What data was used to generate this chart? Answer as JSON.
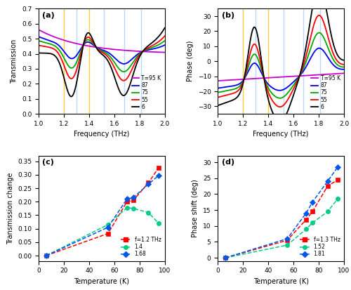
{
  "panel_a": {
    "title": "(a)",
    "xlabel": "Frequency (THz)",
    "ylabel": "Transmission",
    "xlim": [
      1.0,
      2.0
    ],
    "ylim": [
      0.0,
      0.7
    ],
    "yticks": [
      0.0,
      0.1,
      0.2,
      0.3,
      0.4,
      0.5,
      0.6,
      0.7
    ],
    "vlines_orange": [
      1.2,
      1.4
    ],
    "vlines_blue": [
      1.3,
      1.52,
      1.68,
      1.81
    ],
    "temperatures": [
      "T=95 K",
      "87",
      "75",
      "55",
      "6"
    ],
    "colors": [
      "#cc00cc",
      "#0000ff",
      "#00aa00",
      "#ff0000",
      "#000000"
    ]
  },
  "panel_b": {
    "title": "(b)",
    "xlabel": "Frequency (THz)",
    "ylabel": "Phase (deg)",
    "xlim": [
      1.0,
      2.0
    ],
    "ylim": [
      -35,
      35
    ],
    "yticks": [
      -30,
      -20,
      -10,
      0,
      10,
      20,
      30
    ],
    "vlines_orange": [
      1.2,
      1.4
    ],
    "vlines_blue": [
      1.3,
      1.52,
      1.68,
      1.81
    ],
    "temperatures": [
      "T=95 K",
      "87",
      "75",
      "55",
      "6"
    ],
    "colors": [
      "#cc00cc",
      "#0000ff",
      "#00aa00",
      "#ff0000",
      "#000000"
    ]
  },
  "panel_c": {
    "title": "(c)",
    "xlabel": "Temperature (K)",
    "ylabel": "Transmission change",
    "xlim": [
      0,
      100
    ],
    "ylim": [
      -0.02,
      0.37
    ],
    "yticks": [
      0.0,
      0.05,
      0.1,
      0.15,
      0.2,
      0.25,
      0.3,
      0.35
    ],
    "series": [
      {
        "label": "f=1.2 THz",
        "color": "#ff0000",
        "marker": "s",
        "x": [
          6,
          55,
          70,
          75,
          87,
          95
        ],
        "y": [
          0.0,
          0.082,
          0.2,
          0.205,
          0.27,
          0.325
        ]
      },
      {
        "label": "1.4",
        "color": "#00cc88",
        "marker": "o",
        "x": [
          6,
          55,
          70,
          75,
          87,
          95
        ],
        "y": [
          0.0,
          0.115,
          0.178,
          0.175,
          0.16,
          0.12
        ]
      },
      {
        "label": "1.68",
        "color": "#0055ee",
        "marker": "D",
        "x": [
          6,
          55,
          70,
          75,
          87,
          95
        ],
        "y": [
          0.0,
          0.105,
          0.21,
          0.215,
          0.265,
          0.297
        ]
      }
    ]
  },
  "panel_d": {
    "title": "(d)",
    "xlabel": "Temperature (K)",
    "ylabel": "Phase shift (deg)",
    "xlim": [
      0,
      100
    ],
    "ylim": [
      -1,
      32
    ],
    "yticks": [
      0,
      5,
      10,
      15,
      20,
      25,
      30
    ],
    "series": [
      {
        "label": "f=1.3 THz",
        "color": "#ff0000",
        "marker": "s",
        "x": [
          6,
          55,
          70,
          75,
          87,
          95
        ],
        "y": [
          0.0,
          5.5,
          12.0,
          14.5,
          22.5,
          24.5
        ]
      },
      {
        "label": "1.52",
        "color": "#00cc88",
        "marker": "o",
        "x": [
          6,
          55,
          70,
          75,
          87,
          95
        ],
        "y": [
          0.0,
          4.0,
          9.0,
          11.0,
          14.5,
          18.5
        ]
      },
      {
        "label": "1.81",
        "color": "#0055ee",
        "marker": "D",
        "x": [
          6,
          55,
          70,
          75,
          87,
          95
        ],
        "y": [
          0.0,
          6.0,
          14.0,
          17.5,
          24.0,
          28.5
        ]
      }
    ]
  }
}
